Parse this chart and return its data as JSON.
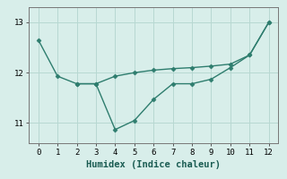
{
  "line1_x": [
    0,
    1,
    2,
    3,
    4,
    5,
    6,
    7,
    8,
    9,
    10,
    11,
    12
  ],
  "line1_y": [
    12.65,
    11.93,
    11.78,
    11.78,
    11.93,
    12.0,
    12.05,
    12.08,
    12.1,
    12.13,
    12.17,
    12.35,
    13.0
  ],
  "line2_x": [
    2,
    3,
    4,
    5,
    6,
    7,
    8,
    9,
    10,
    11,
    12
  ],
  "line2_y": [
    11.78,
    11.78,
    10.87,
    11.05,
    11.47,
    11.78,
    11.78,
    11.87,
    12.1,
    12.35,
    13.0
  ],
  "line_color": "#2e7d6e",
  "bg_color": "#d8eeea",
  "grid_color": "#b8d8d2",
  "xlabel": "Humidex (Indice chaleur)",
  "xlim": [
    -0.5,
    12.5
  ],
  "ylim": [
    10.6,
    13.3
  ],
  "yticks": [
    11,
    12,
    13
  ],
  "xticks": [
    0,
    1,
    2,
    3,
    4,
    5,
    6,
    7,
    8,
    9,
    10,
    11,
    12
  ],
  "marker": "D",
  "marker_size": 2.5,
  "line_width": 1.0,
  "tick_labelsize": 6.5,
  "xlabel_fontsize": 7.5
}
